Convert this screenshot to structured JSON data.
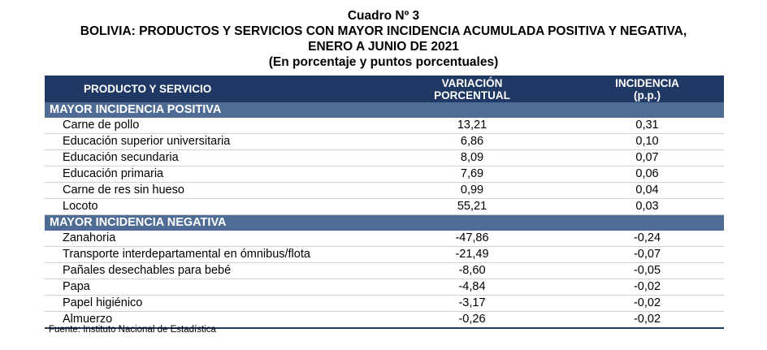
{
  "title": {
    "line1": "Cuadro Nº 3",
    "line2": "BOLIVIA: PRODUCTOS Y SERVICIOS CON MAYOR INCIDENCIA ACUMULADA POSITIVA Y NEGATIVA,",
    "line3": "ENERO A JUNIO DE 2021",
    "line4": "(En porcentaje y puntos porcentuales)"
  },
  "headers": {
    "col1": "PRODUCTO Y SERVICIO",
    "col2_line1": "VARIACIÓN",
    "col2_line2": "PORCENTUAL",
    "col3_line1": "INCIDENCIA",
    "col3_line2": "(p.p.)"
  },
  "sections": [
    {
      "label": "MAYOR INCIDENCIA POSITIVA",
      "rows": [
        {
          "name": "Carne de pollo",
          "variacion": "13,21",
          "incidencia": "0,31"
        },
        {
          "name": "Educación superior universitaria",
          "variacion": "6,86",
          "incidencia": "0,10"
        },
        {
          "name": "Educación secundaria",
          "variacion": "8,09",
          "incidencia": "0,07"
        },
        {
          "name": "Educación primaria",
          "variacion": "7,69",
          "incidencia": "0,06"
        },
        {
          "name": "Carne de res sin hueso",
          "variacion": "0,99",
          "incidencia": "0,04"
        },
        {
          "name": "Locoto",
          "variacion": "55,21",
          "incidencia": "0,03"
        }
      ]
    },
    {
      "label": "MAYOR INCIDENCIA NEGATIVA",
      "rows": [
        {
          "name": "Zanahoria",
          "variacion": "-47,86",
          "incidencia": "-0,24"
        },
        {
          "name": "Transporte interdepartamental en ómnibus/flota",
          "variacion": "-21,49",
          "incidencia": "-0,07"
        },
        {
          "name": "Pañales desechables para bebé",
          "variacion": "-8,60",
          "incidencia": "-0,05"
        },
        {
          "name": "Papa",
          "variacion": "-4,84",
          "incidencia": "-0,02"
        },
        {
          "name": "Papel higiénico",
          "variacion": "-3,17",
          "incidencia": "-0,02"
        },
        {
          "name": "Almuerzo",
          "variacion": "-0,26",
          "incidencia": "-0,02"
        }
      ]
    }
  ],
  "source": "Fuente: Instituto Nacional de Estadística",
  "colors": {
    "header_bg": "#1f3864",
    "section_bg": "#4f6d94"
  }
}
